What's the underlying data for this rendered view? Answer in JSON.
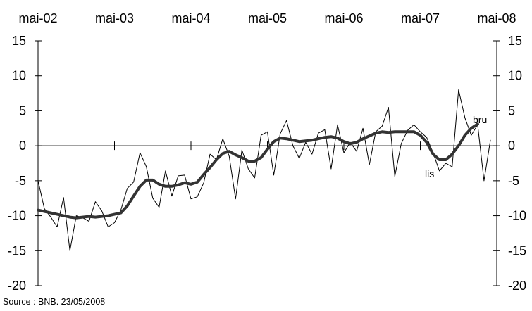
{
  "chart_data": {
    "type": "line",
    "x_tick_labels": [
      "mai-02",
      "mai-03",
      "mai-04",
      "mai-05",
      "mai-06",
      "mai-07",
      "mai-08"
    ],
    "y_ticks": [
      15,
      10,
      5,
      0,
      -5,
      -10,
      -15,
      -20
    ],
    "ylim": [
      -20,
      15
    ],
    "x_start": "2002-05",
    "x_end": "2008-05",
    "grid": false,
    "series": [
      {
        "name": "bru",
        "style": "thin",
        "color": "#000000",
        "start": "2002-05",
        "values": [
          -5,
          -9,
          -10.2,
          -11.6,
          -7.4,
          -15,
          -10,
          -10.3,
          -10.8,
          -8,
          -9.3,
          -11.6,
          -11,
          -9.2,
          -6.1,
          -5.2,
          -1,
          -3,
          -7.5,
          -8.8,
          -3.6,
          -7.2,
          -4.3,
          -4.2,
          -7.6,
          -7.3,
          -5.3,
          -1.2,
          -2,
          1,
          -1.5,
          -7.6,
          -0.6,
          -3.3,
          -4.6,
          1.5,
          2,
          -4.2,
          1.7,
          3.6,
          0,
          -1.8,
          0.5,
          -1.2,
          1.8,
          2.3,
          -3.3,
          3,
          -1,
          0.5,
          -0.8,
          2.5,
          -2.7,
          2,
          2.8,
          5.5,
          -4.4,
          0.3,
          2.2,
          3,
          2,
          1.2,
          -1,
          -3.6,
          -2.5,
          -3,
          8,
          4,
          1.5,
          3,
          -5,
          0.8
        ],
        "label": "bru"
      },
      {
        "name": "lis",
        "style": "thick",
        "color": "#333333",
        "start": "2002-05",
        "end": "2008-02",
        "values": [
          -9.2,
          -9.4,
          -9.6,
          -9.8,
          -10,
          -10.2,
          -10.3,
          -10.2,
          -10.1,
          -10.2,
          -10.1,
          -10,
          -9.8,
          -9.6,
          -8.6,
          -7.2,
          -5.8,
          -4.9,
          -4.9,
          -5.5,
          -5.8,
          -5.8,
          -5.6,
          -5.3,
          -5.5,
          -5.2,
          -4.1,
          -3.1,
          -2,
          -1.1,
          -0.8,
          -1.3,
          -1.7,
          -2.2,
          -2.2,
          -1.7,
          -0.5,
          0.6,
          1.1,
          1,
          0.8,
          0.6,
          0.7,
          0.8,
          1,
          1.2,
          1.3,
          1.1,
          0.6,
          0.3,
          0.5,
          1,
          1.4,
          1.8,
          2,
          1.9,
          2,
          2,
          2,
          2,
          1.5,
          0.5,
          -1.2,
          -2,
          -2,
          -1.2,
          0,
          1.5,
          2.5,
          3.1
        ],
        "label": "lis"
      }
    ]
  },
  "source": "Source : BNB. 23/05/2008"
}
